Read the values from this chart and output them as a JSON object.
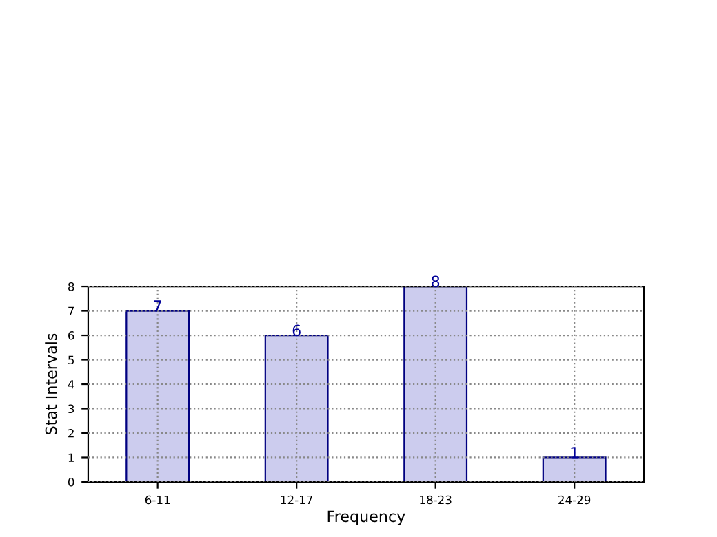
{
  "chart_data": {
    "type": "bar",
    "xlabel": "Frequency",
    "ylabel": "Stat Intervals",
    "categories": [
      "6-11",
      "12-17",
      "18-23",
      "24-29"
    ],
    "values": [
      7,
      6,
      8,
      1
    ],
    "color": "#ccccee",
    "ylim": [
      0,
      8
    ],
    "yticks": [
      0,
      1,
      2,
      3,
      4,
      5,
      6,
      7,
      8
    ],
    "grid": true,
    "data_labels": true
  }
}
